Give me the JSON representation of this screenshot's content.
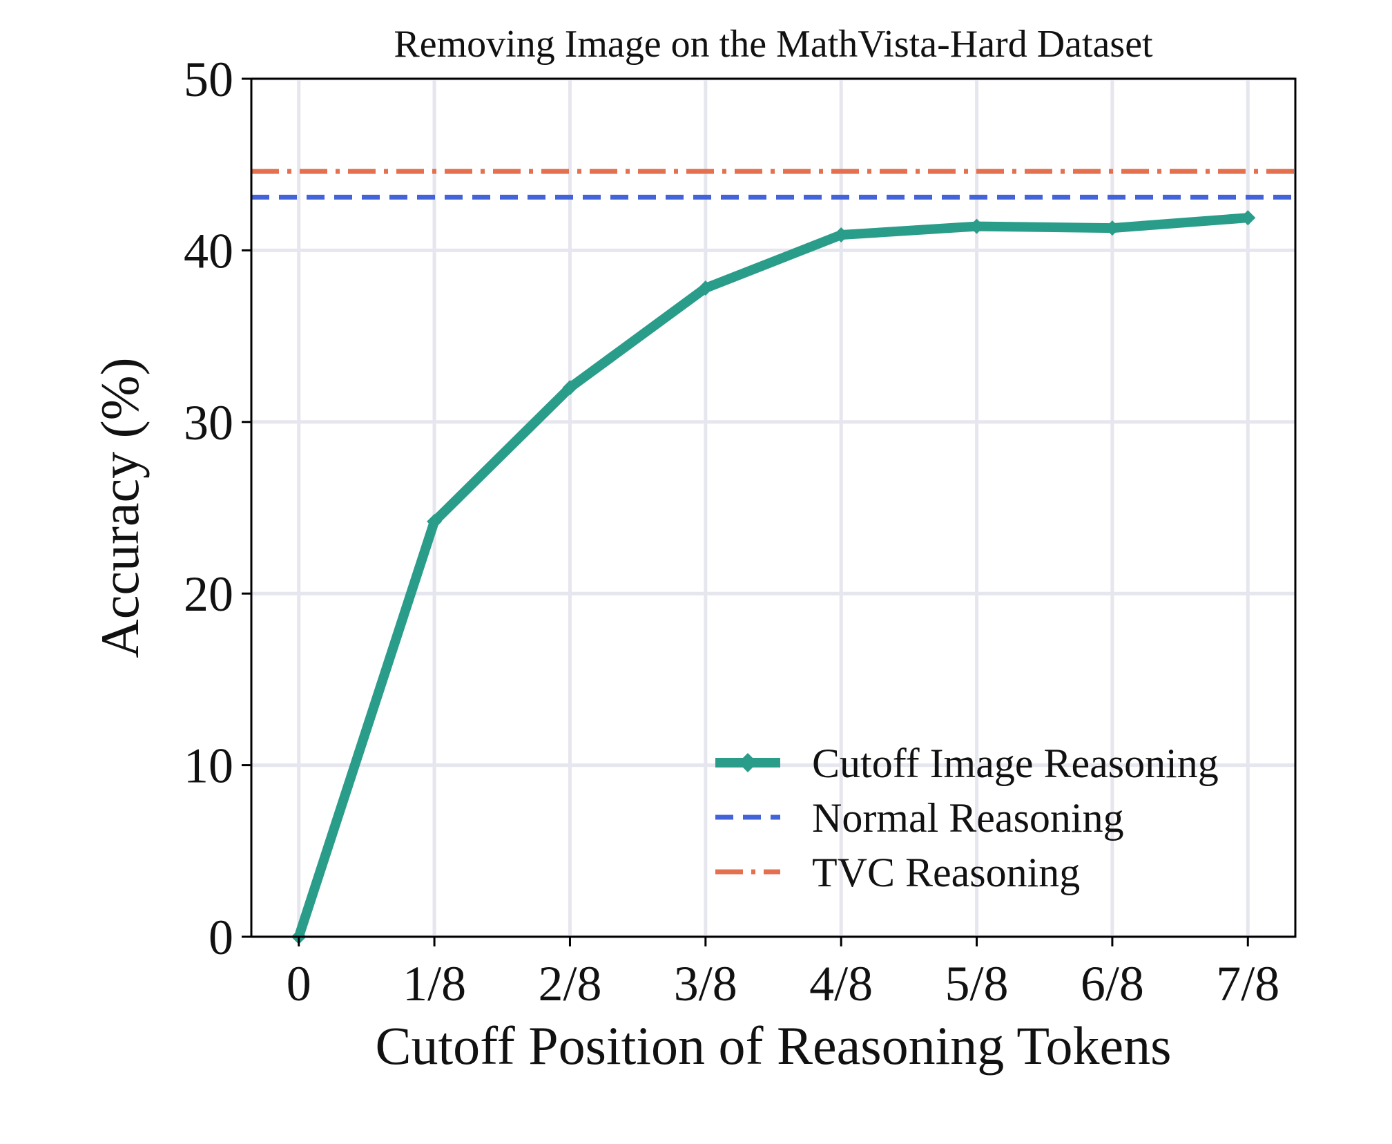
{
  "chart_data": {
    "type": "line",
    "title": "Removing Image on the MathVista-Hard Dataset",
    "xlabel": "Cutoff Position of Reasoning Tokens",
    "ylabel": "Accuracy (%)",
    "categories": [
      "0",
      "1/8",
      "2/8",
      "3/8",
      "4/8",
      "5/8",
      "6/8",
      "7/8"
    ],
    "ylim": [
      0,
      50
    ],
    "yticks": [
      "0",
      "10",
      "20",
      "30",
      "40",
      "50"
    ],
    "grid": true,
    "legend_position": "lower-right",
    "series": [
      {
        "name": "Cutoff Image Reasoning",
        "style": "solid-line-with-markers",
        "color": "#2a9d8a",
        "values": [
          0.0,
          24.2,
          32.0,
          37.8,
          40.9,
          41.4,
          41.3,
          41.9
        ]
      },
      {
        "name": "Normal Reasoning",
        "style": "dashed-horizontal",
        "color": "#4363d8",
        "value": 43.1
      },
      {
        "name": "TVC Reasoning",
        "style": "dashdot-horizontal",
        "color": "#e4704f",
        "value": 44.6
      }
    ]
  }
}
